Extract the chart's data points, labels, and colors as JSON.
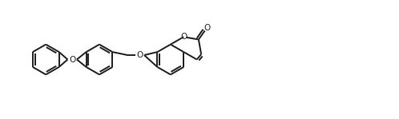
{
  "bg_color": "#ffffff",
  "line_color": "#2a2a2a",
  "line_width": 1.5,
  "fig_width": 4.98,
  "fig_height": 1.49,
  "dpi": 100,
  "xlim": [
    0,
    10
  ],
  "ylim": [
    0,
    3
  ]
}
